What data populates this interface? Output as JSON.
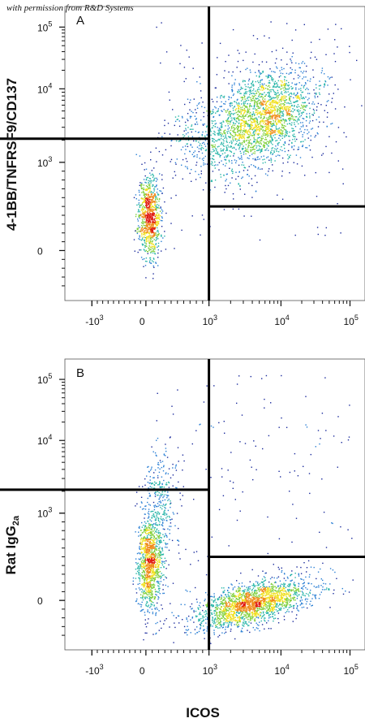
{
  "watermark": "with permission from R&D Systems",
  "xlabel": "ICOS",
  "panels": [
    {
      "label": "A",
      "ylabel": "4-1BB/TNFRSF9/CD137"
    },
    {
      "label": "B",
      "ylabel_main": "Rat IgG",
      "ylabel_sub": "2a"
    }
  ],
  "colors": {
    "density": [
      "#1a2a9c",
      "#2a7fd4",
      "#27b5a8",
      "#7fcf3a",
      "#f0e020",
      "#f08a1a",
      "#e01a12"
    ]
  },
  "chart_data": [
    {
      "type": "scatter",
      "title": "",
      "panel_label": "A",
      "xlabel": "ICOS",
      "ylabel": "4-1BB/TNFRSF9/CD137",
      "x_scale": "biexponential",
      "y_scale": "biexponential",
      "x_ticks": [
        "-10^3",
        "0",
        "10^3",
        "10^4",
        "10^5"
      ],
      "y_ticks": [
        "0",
        "10^3",
        "10^4",
        "10^5"
      ],
      "quadrant_gates": {
        "x": 1000,
        "y_left": 2100,
        "y_right": 500
      },
      "populations": [
        {
          "name": "",
          "x_center": 150,
          "y_center": 350,
          "x_spread": "narrow",
          "density": "high"
        },
        {
          "name": "",
          "x_center": 4000,
          "y_center": 3500,
          "x_spread": "wide",
          "density": "high"
        }
      ]
    },
    {
      "type": "scatter",
      "title": "",
      "panel_label": "B",
      "xlabel": "ICOS",
      "ylabel": "Rat IgG2a",
      "x_scale": "biexponential",
      "y_scale": "biexponential",
      "x_ticks": [
        "-10^3",
        "0",
        "10^3",
        "10^4",
        "10^5"
      ],
      "y_ticks": [
        "0",
        "10^3",
        "10^4",
        "10^5"
      ],
      "quadrant_gates": {
        "x": 1000,
        "y_left": 2100,
        "y_right": 500
      },
      "populations": [
        {
          "name": "",
          "x_center": 150,
          "y_center": 350,
          "x_spread": "narrow",
          "density": "high"
        },
        {
          "name": "",
          "x_center": 5000,
          "y_center": 150,
          "x_spread": "wide",
          "density": "high"
        }
      ]
    }
  ]
}
